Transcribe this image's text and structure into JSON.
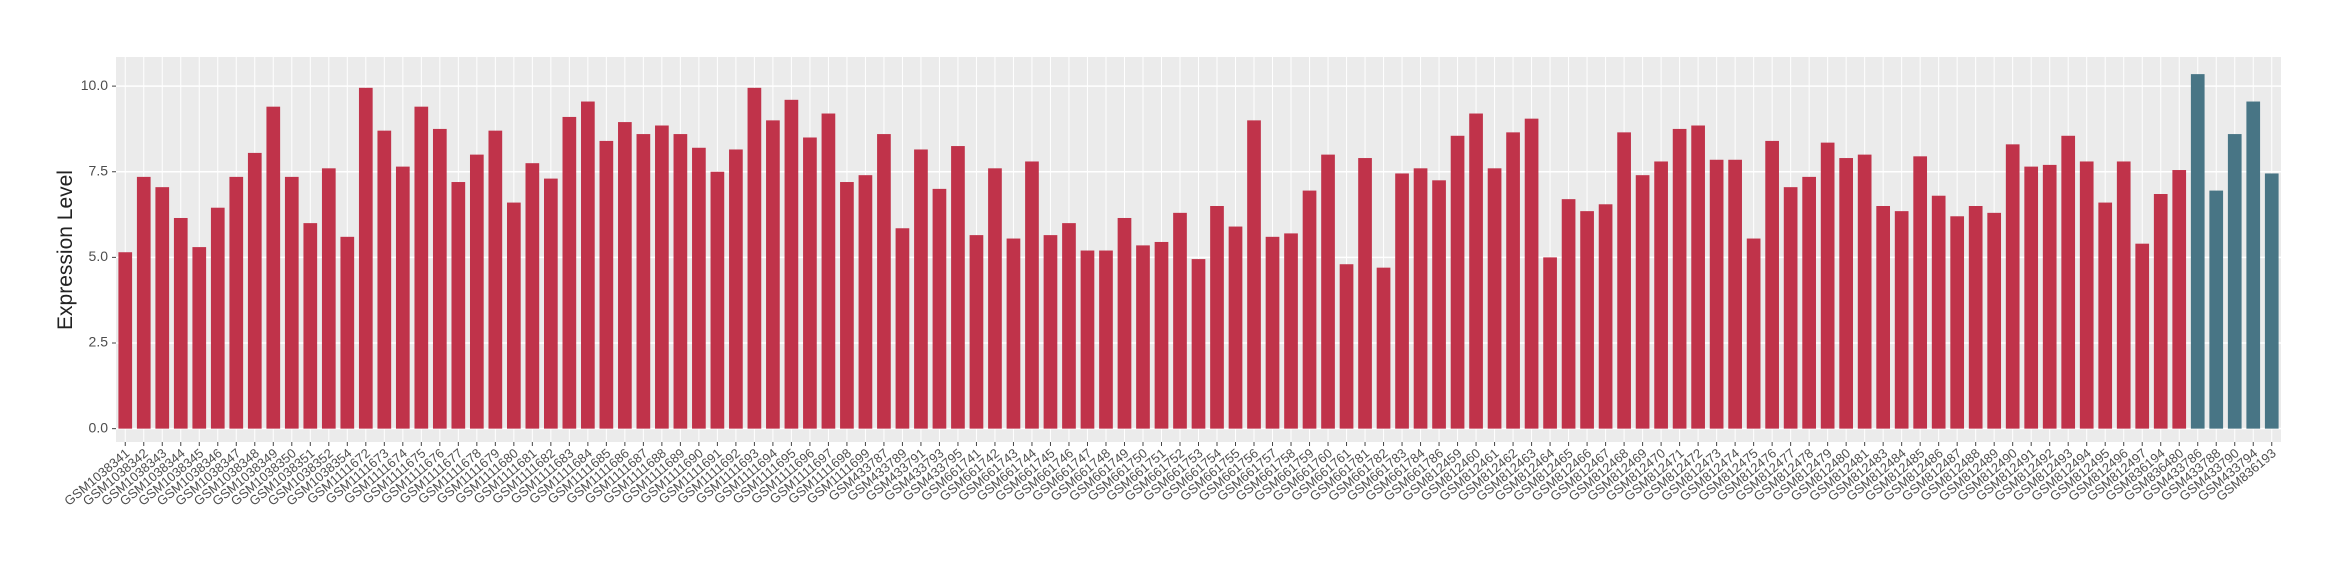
{
  "chart_data": {
    "type": "bar",
    "y_label": "Expression Level",
    "categories": [
      "GSM1038341",
      "GSM1038342",
      "GSM1038343",
      "GSM1038344",
      "GSM1038345",
      "GSM1038346",
      "GSM1038347",
      "GSM1038348",
      "GSM1038349",
      "GSM1038350",
      "GSM1038351",
      "GSM1038352",
      "GSM1038354",
      "GSM1111672",
      "GSM1111673",
      "GSM1111674",
      "GSM1111675",
      "GSM1111676",
      "GSM1111677",
      "GSM1111678",
      "GSM1111679",
      "GSM1111680",
      "GSM1111681",
      "GSM1111682",
      "GSM1111683",
      "GSM1111684",
      "GSM1111685",
      "GSM1111686",
      "GSM1111687",
      "GSM1111688",
      "GSM1111689",
      "GSM1111690",
      "GSM1111691",
      "GSM1111692",
      "GSM1111693",
      "GSM1111694",
      "GSM1111695",
      "GSM1111696",
      "GSM1111697",
      "GSM1111698",
      "GSM1111699",
      "GSM433787",
      "GSM433789",
      "GSM433791",
      "GSM433793",
      "GSM433795",
      "GSM661741",
      "GSM661742",
      "GSM661743",
      "GSM661744",
      "GSM661745",
      "GSM661746",
      "GSM661747",
      "GSM661748",
      "GSM661749",
      "GSM661750",
      "GSM661751",
      "GSM661752",
      "GSM661753",
      "GSM661754",
      "GSM661755",
      "GSM661756",
      "GSM661757",
      "GSM661758",
      "GSM661759",
      "GSM661760",
      "GSM661761",
      "GSM661781",
      "GSM661782",
      "GSM661783",
      "GSM661784",
      "GSM661786",
      "GSM812459",
      "GSM812460",
      "GSM812461",
      "GSM812462",
      "GSM812463",
      "GSM812464",
      "GSM812465",
      "GSM812466",
      "GSM812467",
      "GSM812468",
      "GSM812469",
      "GSM812470",
      "GSM812471",
      "GSM812472",
      "GSM812473",
      "GSM812474",
      "GSM812475",
      "GSM812476",
      "GSM812477",
      "GSM812478",
      "GSM812479",
      "GSM812480",
      "GSM812481",
      "GSM812483",
      "GSM812484",
      "GSM812485",
      "GSM812486",
      "GSM812487",
      "GSM812488",
      "GSM812489",
      "GSM812490",
      "GSM812491",
      "GSM812492",
      "GSM812493",
      "GSM812494",
      "GSM812495",
      "GSM812496",
      "GSM812497",
      "GSM836194",
      "GSM836480",
      "GSM433786",
      "GSM433788",
      "GSM433790",
      "GSM433794",
      "GSM836193"
    ],
    "values": [
      5.15,
      7.35,
      7.05,
      6.15,
      5.3,
      6.45,
      7.35,
      8.05,
      9.4,
      7.35,
      6.0,
      7.6,
      5.6,
      9.95,
      8.7,
      7.65,
      9.4,
      8.75,
      7.2,
      8.0,
      8.7,
      6.6,
      7.75,
      7.3,
      9.1,
      9.55,
      8.4,
      8.95,
      8.6,
      8.85,
      8.6,
      8.2,
      7.5,
      8.15,
      9.95,
      9.0,
      9.6,
      8.5,
      9.2,
      7.2,
      7.4,
      8.6,
      5.85,
      8.15,
      7.0,
      8.25,
      5.65,
      7.6,
      5.55,
      7.8,
      5.65,
      6.0,
      5.2,
      5.2,
      6.15,
      5.35,
      5.45,
      6.3,
      4.95,
      6.5,
      5.9,
      9.0,
      5.6,
      5.7,
      6.95,
      8.0,
      4.8,
      7.9,
      4.7,
      7.45,
      7.6,
      7.25,
      8.55,
      9.2,
      7.6,
      8.65,
      9.05,
      5.0,
      6.7,
      6.35,
      6.55,
      8.65,
      7.4,
      7.8,
      8.75,
      8.85,
      7.85,
      7.85,
      5.55,
      8.4,
      7.05,
      7.35,
      8.35,
      7.9,
      8.0,
      6.5,
      6.35,
      7.95,
      6.8,
      6.2,
      6.5,
      6.3,
      8.3,
      7.65,
      7.7,
      8.55,
      7.8,
      6.6,
      7.8,
      5.4,
      6.85,
      7.55,
      10.35,
      6.95,
      8.6,
      9.55,
      7.45
    ],
    "colors": [
      "#c0334a",
      "#c0334a",
      "#c0334a",
      "#c0334a",
      "#c0334a",
      "#c0334a",
      "#c0334a",
      "#c0334a",
      "#c0334a",
      "#c0334a",
      "#c0334a",
      "#c0334a",
      "#c0334a",
      "#c0334a",
      "#c0334a",
      "#c0334a",
      "#c0334a",
      "#c0334a",
      "#c0334a",
      "#c0334a",
      "#c0334a",
      "#c0334a",
      "#c0334a",
      "#c0334a",
      "#c0334a",
      "#c0334a",
      "#c0334a",
      "#c0334a",
      "#c0334a",
      "#c0334a",
      "#c0334a",
      "#c0334a",
      "#c0334a",
      "#c0334a",
      "#c0334a",
      "#c0334a",
      "#c0334a",
      "#c0334a",
      "#c0334a",
      "#c0334a",
      "#c0334a",
      "#c0334a",
      "#c0334a",
      "#c0334a",
      "#c0334a",
      "#c0334a",
      "#c0334a",
      "#c0334a",
      "#c0334a",
      "#c0334a",
      "#c0334a",
      "#c0334a",
      "#c0334a",
      "#c0334a",
      "#c0334a",
      "#c0334a",
      "#c0334a",
      "#c0334a",
      "#c0334a",
      "#c0334a",
      "#c0334a",
      "#c0334a",
      "#c0334a",
      "#c0334a",
      "#c0334a",
      "#c0334a",
      "#c0334a",
      "#c0334a",
      "#c0334a",
      "#c0334a",
      "#c0334a",
      "#c0334a",
      "#c0334a",
      "#c0334a",
      "#c0334a",
      "#c0334a",
      "#c0334a",
      "#c0334a",
      "#c0334a",
      "#c0334a",
      "#c0334a",
      "#c0334a",
      "#c0334a",
      "#c0334a",
      "#c0334a",
      "#c0334a",
      "#c0334a",
      "#c0334a",
      "#c0334a",
      "#c0334a",
      "#c0334a",
      "#c0334a",
      "#c0334a",
      "#c0334a",
      "#c0334a",
      "#c0334a",
      "#c0334a",
      "#c0334a",
      "#c0334a",
      "#c0334a",
      "#c0334a",
      "#c0334a",
      "#c0334a",
      "#c0334a",
      "#c0334a",
      "#c0334a",
      "#c0334a",
      "#c0334a",
      "#c0334a",
      "#c0334a",
      "#c0334a",
      "#c0334a",
      "#487585",
      "#487585",
      "#487585",
      "#487585",
      "#487585"
    ],
    "ylim": [
      -0.39,
      10.85
    ],
    "yticks": [
      {
        "value": 0,
        "label": "0.0"
      },
      2.5,
      {
        "value": 5,
        "label": "5.0"
      },
      7.5,
      {
        "value": 10,
        "label": "10.0"
      }
    ],
    "grid": true
  }
}
